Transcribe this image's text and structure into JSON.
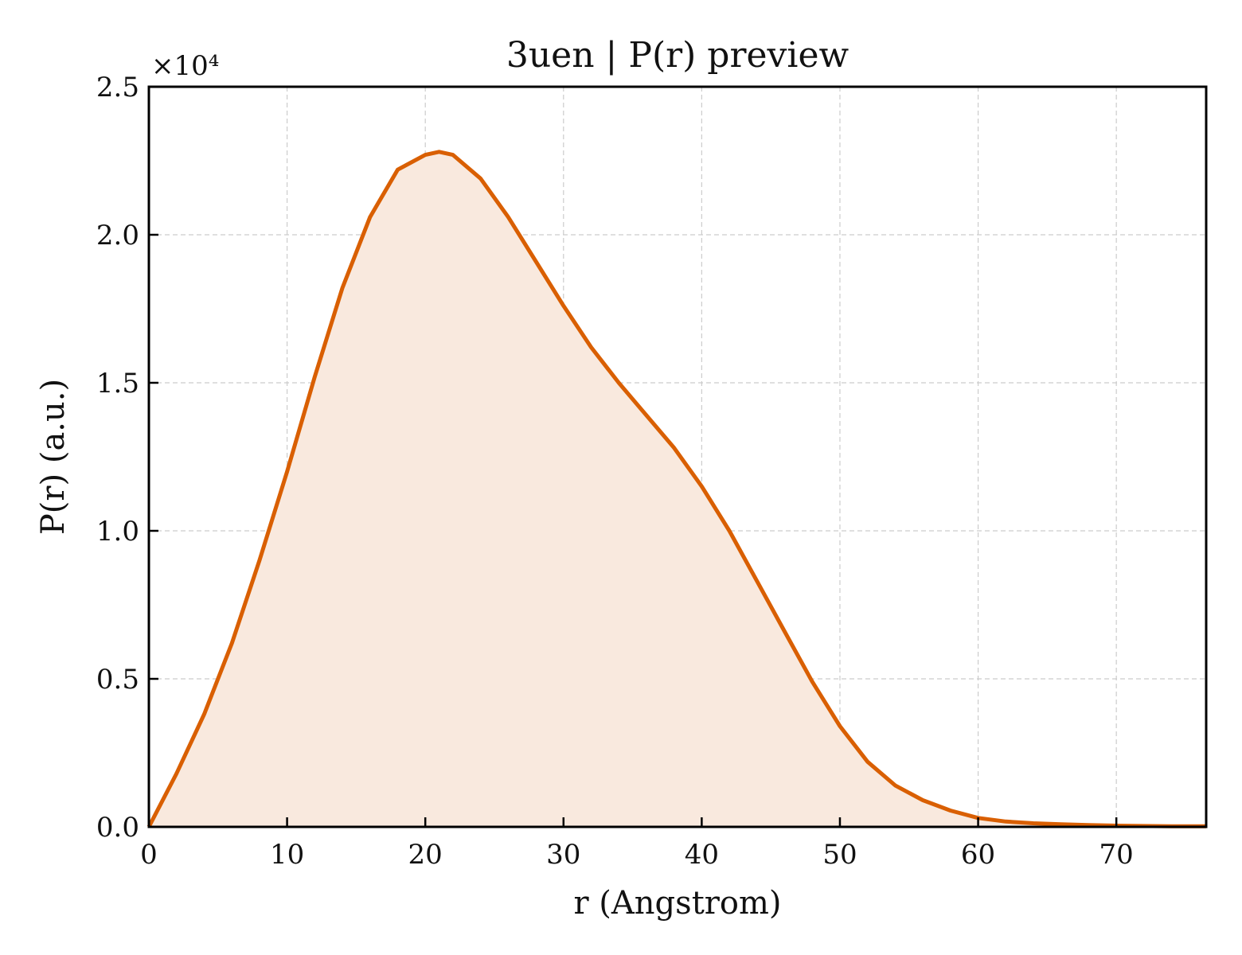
{
  "chart_data": {
    "type": "area",
    "title": "3uen | P(r) preview",
    "xlabel": "r (Angstrom)",
    "ylabel": "P(r) (a.u.)",
    "y_offset_text": "×10⁴",
    "xlim": [
      0,
      76.5
    ],
    "ylim": [
      0,
      2.5
    ],
    "x_ticks": [
      0,
      10,
      20,
      30,
      40,
      50,
      60,
      70
    ],
    "x_tick_labels": [
      "0",
      "10",
      "20",
      "30",
      "40",
      "50",
      "60",
      "70"
    ],
    "y_ticks": [
      0,
      0.5,
      1.0,
      1.5,
      2.0,
      2.5
    ],
    "y_tick_labels": [
      "0.0",
      "0.5",
      "1.0",
      "1.5",
      "2.0",
      "2.5"
    ],
    "grid": true,
    "series": [
      {
        "color": "#d95f02",
        "fill_color": "#f9e9de",
        "x": [
          0,
          2,
          4,
          6,
          8,
          10,
          12,
          14,
          16,
          18,
          20,
          21,
          22,
          24,
          26,
          28,
          30,
          32,
          34,
          36,
          38,
          40,
          42,
          44,
          46,
          48,
          50,
          52,
          54,
          56,
          58,
          60,
          62,
          64,
          66,
          68,
          70,
          72,
          74,
          76.5
        ],
        "y": [
          0.0,
          0.18,
          0.38,
          0.62,
          0.9,
          1.2,
          1.52,
          1.82,
          2.06,
          2.22,
          2.27,
          2.28,
          2.27,
          2.19,
          2.06,
          1.91,
          1.76,
          1.62,
          1.5,
          1.39,
          1.28,
          1.15,
          1.0,
          0.83,
          0.66,
          0.49,
          0.34,
          0.22,
          0.14,
          0.09,
          0.055,
          0.03,
          0.018,
          0.012,
          0.009,
          0.006,
          0.004,
          0.003,
          0.002,
          0.002
        ]
      }
    ]
  }
}
